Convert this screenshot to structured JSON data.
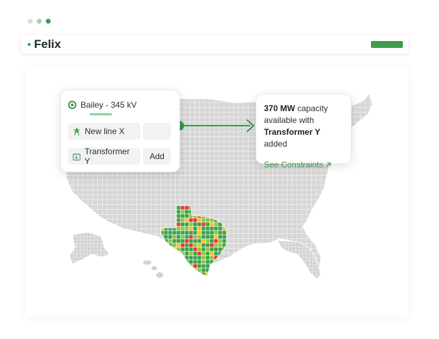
{
  "window_controls": {
    "dots": [
      {
        "name": "window-dot-1",
        "color": "#d8dcd8"
      },
      {
        "name": "window-dot-2",
        "color": "#a8cfb0"
      },
      {
        "name": "window-dot-3",
        "color": "#3f9a50"
      }
    ]
  },
  "header": {
    "title": "Felix",
    "accent": "#3f9a50"
  },
  "config_card": {
    "substation_label": "Bailey - 345 kV",
    "substation_icon": "radio-icon",
    "rows": [
      {
        "icon": "transmission-tower-icon",
        "label": "New line X",
        "action": ""
      },
      {
        "icon": "transformer-icon",
        "label": "Transformer Y",
        "action": "Add"
      }
    ]
  },
  "result_card": {
    "capacity_value": "370 MW",
    "capacity_text": " capacity available with ",
    "component": "Transformer Y",
    "suffix": " added",
    "link_label": "See Constraints",
    "link_icon": "arrow-up-right-icon"
  },
  "map": {
    "base_color": "#d6d6d6",
    "highlight_colors": [
      "#3aa04a",
      "#8cc63f",
      "#f2c21b",
      "#e53935"
    ],
    "connector_color": "#2f9a48"
  }
}
